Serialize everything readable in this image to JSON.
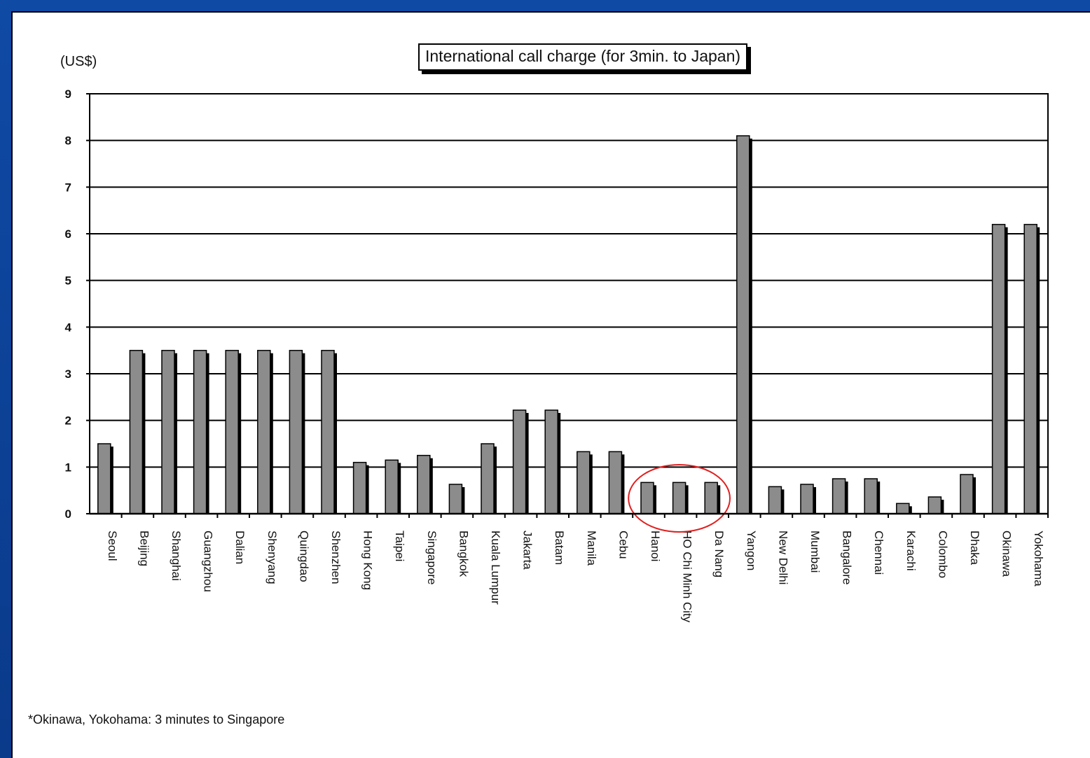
{
  "chart_data": {
    "type": "bar",
    "title": "International call charge (for 3min. to Japan)",
    "ylabel": "(US$)",
    "xlabel": "",
    "ylim": [
      0,
      9
    ],
    "yticks": [
      "0",
      "1",
      "2",
      "3",
      "4",
      "5",
      "6",
      "7",
      "8",
      "9"
    ],
    "grid": true,
    "categories": [
      "Seoul",
      "Beijing",
      "Shanghai",
      "Guangzhou",
      "Dalian",
      "Shenyang",
      "Quingdao",
      "Shenzhen",
      "Hong Kong",
      "Taipei",
      "Singapore",
      "Bangkok",
      "Kuala Lumpur",
      "Jakarta",
      "Batam",
      "Manila",
      "Cebu",
      "Hanoi",
      "HO Chi Minh City",
      "Da Nang",
      "Yangon",
      "New Delhi",
      "Mumbai",
      "Bangalore",
      "Chennai",
      "Karachi",
      "Colombo",
      "Dhaka",
      "Okinawa",
      "Yokohama"
    ],
    "values": [
      1.5,
      3.5,
      3.5,
      3.5,
      3.5,
      3.5,
      3.5,
      3.5,
      1.1,
      1.15,
      1.25,
      0.63,
      1.5,
      2.22,
      2.22,
      1.33,
      1.33,
      0.67,
      0.67,
      0.67,
      8.1,
      0.58,
      0.63,
      0.75,
      0.75,
      0.22,
      0.36,
      0.84,
      6.2,
      6.2
    ],
    "bar_color": "#8c8c8c",
    "shadow_color": "#000000",
    "highlight": {
      "categories": [
        "Hanoi",
        "HO Chi Minh City",
        "Da Nang"
      ],
      "color": "#e02020"
    },
    "footnote": "*Okinawa, Yokohama: 3 minutes to Singapore"
  },
  "colors": {
    "background_frame": "#0f4aa5",
    "slide": "#ffffff"
  }
}
